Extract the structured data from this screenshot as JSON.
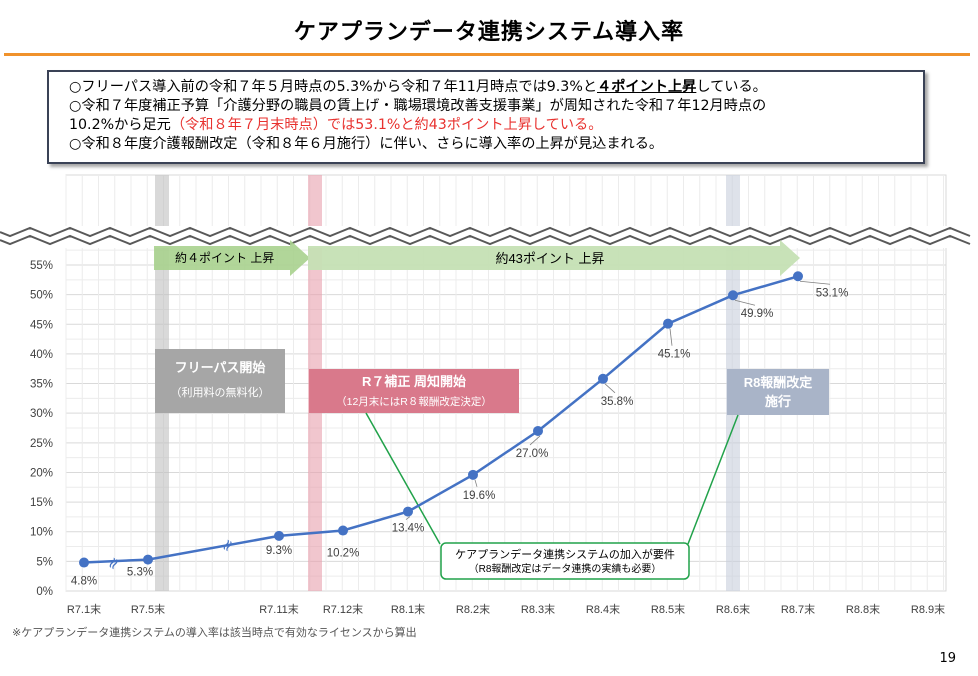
{
  "page": {
    "title": "ケアプランデータ連携システム導入率",
    "page_number": "19",
    "footnote": "※ケアプランデータ連携システムの導入率は該当時点で有効なライセンスから算出"
  },
  "summary": {
    "line1_a": "○フリーパス導入前の令和７年５月時点の5.3%から令和７年11月時点では9.3%と",
    "line1_b": "４ポイント上昇",
    "line1_c": "している。",
    "line2": "○令和７年度補正予算「介護分野の職員の賃上げ・職場環境改善支援事業」が周知された令和７年12月時点の",
    "line3_a": "10.2%から足元",
    "line3_b": "（令和８年７月末時点）では53.1%と約43ポイント上昇している。",
    "line4": "○令和８年度介護報酬改定（令和８年６月施行）に伴い、さらに導入率の上昇が見込まれる。"
  },
  "annotations": {
    "arrow1": "約４ポイント 上昇",
    "arrow2": "約43ポイント 上昇",
    "freepass_title": "フリーパス開始",
    "freepass_sub": "（利用料の無料化）",
    "hosei_title": "R７補正 周知開始",
    "hosei_sub": "（12月末にはR８報酬改定決定）",
    "kaitei_title1": "R8報酬改定",
    "kaitei_title2": "施行",
    "req_line1": "ケアプランデータ連携システムの加入が要件",
    "req_line2": "（R8報酬改定はデータ連携の実績も必要）"
  },
  "chart_data": {
    "type": "line",
    "title": "",
    "xlabel": "",
    "ylabel": "",
    "ylim": [
      0,
      55
    ],
    "yticks": [
      "0%",
      "5%",
      "10%",
      "15%",
      "20%",
      "25%",
      "30%",
      "35%",
      "40%",
      "45%",
      "50%",
      "55%"
    ],
    "categories": [
      "R7.1末",
      "R7.5末",
      "R7.11末",
      "R7.12末",
      "R8.1末",
      "R8.2末",
      "R8.3末",
      "R8.4末",
      "R8.5末",
      "R8.6末",
      "R8.7末",
      "R8.8末",
      "R8.9末"
    ],
    "series": [
      {
        "name": "",
        "color": "#4472c4",
        "points": [
          {
            "x": "R7.1末",
            "y": 4.8,
            "label": "4.8%"
          },
          {
            "x": "R7.5末",
            "y": 5.3,
            "label": "5.3%"
          },
          {
            "x": "R7.11末",
            "y": 9.3,
            "label": "9.3%"
          },
          {
            "x": "R7.12末",
            "y": 10.2,
            "label": "10.2%"
          },
          {
            "x": "R8.1末",
            "y": 13.4,
            "label": "13.4%"
          },
          {
            "x": "R8.2末",
            "y": 19.6,
            "label": "19.6%"
          },
          {
            "x": "R8.3末",
            "y": 27.0,
            "label": "27.0%"
          },
          {
            "x": "R8.4末",
            "y": 35.8,
            "label": "35.8%"
          },
          {
            "x": "R8.5末",
            "y": 45.1,
            "label": "45.1%"
          },
          {
            "x": "R8.6末",
            "y": 49.9,
            "label": "49.9%"
          },
          {
            "x": "R8.7末",
            "y": 53.1,
            "label": "53.1%"
          }
        ]
      }
    ],
    "grid": true,
    "axis_break": true
  }
}
